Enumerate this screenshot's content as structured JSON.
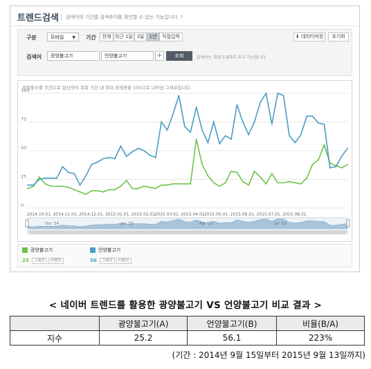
{
  "app": {
    "logo": "트렌드검색",
    "description": "검색어의 기간별 검색추이를 확인할 수 있는 기능입니다. ?"
  },
  "filter": {
    "category_label": "구분",
    "category_value": "모바일",
    "period_label": "기간",
    "period_options": [
      "전체",
      "최근 1달",
      "3달",
      "1년",
      "직접입력"
    ],
    "period_selected": "1년",
    "keyword_label": "검색어",
    "keyword1": "광양불고기",
    "keyword2": "언양불고기",
    "search_button": "조회",
    "hint": "검색어는 최대 5개까지 추가 가능합니다.",
    "save_button": "데이터저장",
    "reset_button": "초기화"
  },
  "chart_note": "검색횟수를 주간으로 합산하여 조회 기간 내 최대 검색량을 100으로 나타낸 그래프입니다.",
  "chart_data": {
    "type": "line",
    "ylim": [
      0,
      100
    ],
    "yticks": [
      "0",
      "25",
      "50",
      "75",
      "100"
    ],
    "x_tick_labels": [
      "2014.10.01.",
      "2014.11.01.",
      "2014.12.01.",
      "2015.01.01.",
      "2015.02.01.",
      "2015.03.01.",
      "2015.04.01.",
      "2015.05.01.",
      "2015.06.01.",
      "2015.07.01.",
      "2015.08.01."
    ],
    "x_tick_weeks": [
      2,
      6.5,
      11,
      15.5,
      20,
      24,
      28.5,
      32.5,
      37,
      41.5,
      46
    ],
    "grid": true,
    "series": [
      {
        "name": "광양불고기",
        "color": "#6cc24a",
        "values": [
          17,
          19,
          27,
          21,
          19,
          19,
          19,
          18,
          16,
          14,
          12,
          15,
          15,
          14,
          16,
          16,
          19,
          24,
          17,
          17,
          19,
          18,
          17,
          20,
          20,
          21,
          21,
          21,
          21,
          60,
          38,
          28,
          22,
          19,
          22,
          32,
          31,
          23,
          20,
          32,
          27,
          21,
          30,
          22,
          22,
          23,
          22,
          21,
          26,
          38,
          42,
          55,
          39,
          37,
          35,
          38
        ]
      },
      {
        "name": "언양불고기",
        "color": "#4a9cc4",
        "values": [
          20,
          20,
          25,
          26,
          26,
          26,
          36,
          31,
          30,
          20,
          28,
          38,
          40,
          43,
          44,
          43,
          54,
          45,
          49,
          52,
          50,
          46,
          44,
          75,
          68,
          82,
          98,
          71,
          66,
          88,
          68,
          57,
          75,
          56,
          63,
          60,
          90,
          75,
          64,
          75,
          92,
          100,
          73,
          100,
          98,
          63,
          57,
          64,
          80,
          80,
          74,
          73,
          35,
          36,
          45,
          52
        ]
      }
    ],
    "navigator_labels": [
      "Oct '14",
      "Jan '15",
      "Apr '15",
      "Jul '15"
    ]
  },
  "legend": [
    {
      "name": "광양불고기",
      "value": "25",
      "chip1": "그래프",
      "chip2": "이벤트",
      "color": "#6cc24a"
    },
    {
      "name": "언양불고기",
      "value": "56",
      "chip1": "그래프",
      "chip2": "이벤트",
      "color": "#4a9cc4"
    }
  ],
  "caption": "< 네이버 트렌드를 활용한 광양불고기 VS 언양불고기 비교 결과 >",
  "table": {
    "headers": [
      "",
      "광양불고기(A)",
      "언양불고기(B)",
      "비율(B/A)"
    ],
    "row": {
      "label": "지수",
      "a": "25.2",
      "b": "56.1",
      "ratio": "223%"
    }
  },
  "period_text": "(기간 : 2014년 9월 15일부터 2015년 9월 13일까지)"
}
